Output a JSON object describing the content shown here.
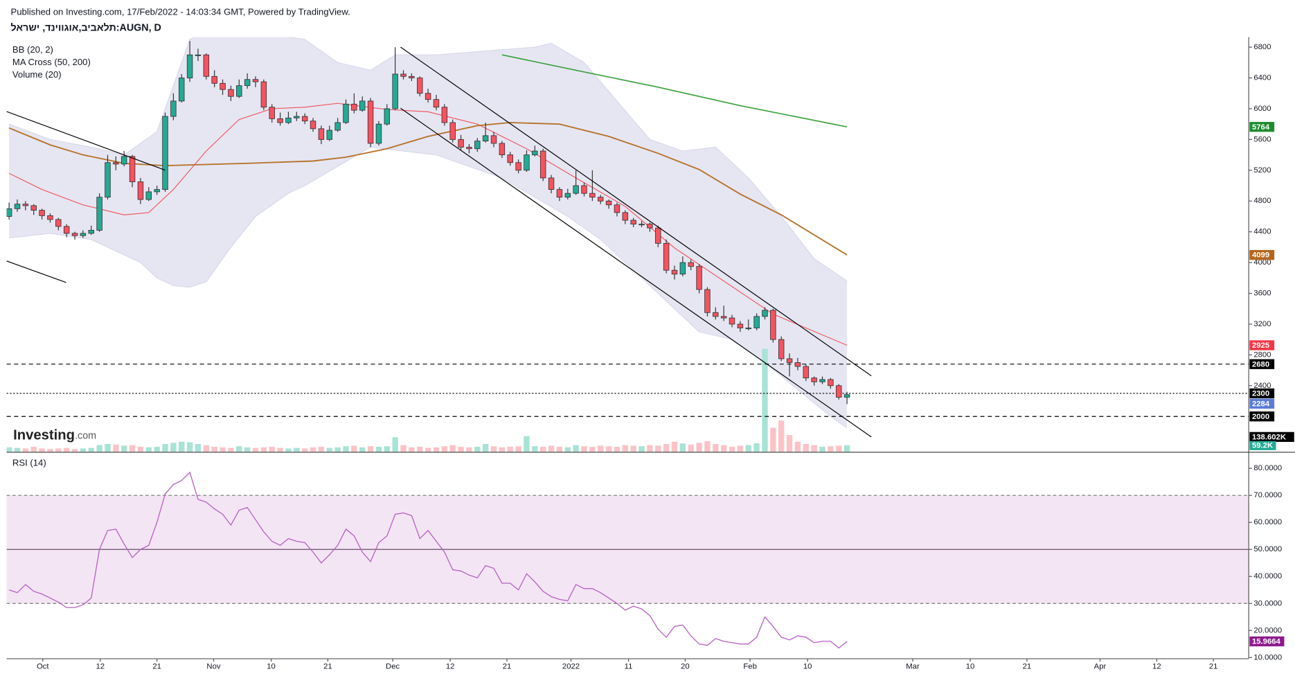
{
  "chart_data": {
    "type": "candlestick",
    "header": "Published on Investing.com, 17/Feb/2022 - 14:03:34 GMT, Powered by TradingView.",
    "title": "תלאביב,אוגווינד, ישראל:AUGN, D",
    "indicator_labels": [
      "BB (20, 2)",
      "MA Cross (50, 200)",
      "Volume (20)"
    ],
    "logo": [
      "Investing",
      ".com"
    ],
    "xlim": [
      -0.3,
      150.9
    ],
    "xticks": [
      {
        "value": 4.1,
        "label": "Oct"
      },
      {
        "value": 11.1,
        "label": "12"
      },
      {
        "value": 18,
        "label": "21"
      },
      {
        "value": 24.9,
        "label": "Nov"
      },
      {
        "value": 31.9,
        "label": "10"
      },
      {
        "value": 38.8,
        "label": "21"
      },
      {
        "value": 46.7,
        "label": "Dec"
      },
      {
        "value": 53.7,
        "label": "12"
      },
      {
        "value": 60.6,
        "label": "21"
      },
      {
        "value": 68.4,
        "label": "2022"
      },
      {
        "value": 75.4,
        "label": "11"
      },
      {
        "value": 82.3,
        "label": "20"
      },
      {
        "value": 90.2,
        "label": "Feb"
      },
      {
        "value": 97.2,
        "label": "10"
      },
      {
        "value": 110,
        "label": "Mar"
      },
      {
        "value": 117,
        "label": "10"
      },
      {
        "value": 123.9,
        "label": "21"
      },
      {
        "value": 132.8,
        "label": "Apr"
      },
      {
        "value": 139.7,
        "label": "12"
      },
      {
        "value": 146.6,
        "label": "21"
      }
    ],
    "ylim": [
      1540,
      6930
    ],
    "yticks": [
      2400,
      2800,
      3200,
      3600,
      4000,
      4400,
      4800,
      5200,
      5600,
      6000,
      6400,
      6800
    ],
    "up_color": "#22ab94",
    "down_color": "#f7525f",
    "ohlc": [
      [
        4600,
        4780,
        4560,
        4700
      ],
      [
        4700,
        4820,
        4660,
        4760
      ],
      [
        4760,
        4800,
        4680,
        4740
      ],
      [
        4740,
        4760,
        4620,
        4680
      ],
      [
        4680,
        4700,
        4560,
        4610
      ],
      [
        4610,
        4640,
        4520,
        4560
      ],
      [
        4560,
        4580,
        4420,
        4470
      ],
      [
        4470,
        4500,
        4330,
        4380
      ],
      [
        4380,
        4400,
        4300,
        4350
      ],
      [
        4350,
        4420,
        4320,
        4380
      ],
      [
        4380,
        4480,
        4360,
        4420
      ],
      [
        4420,
        4900,
        4400,
        4850
      ],
      [
        4850,
        5400,
        4820,
        5300
      ],
      [
        5300,
        5380,
        5200,
        5280
      ],
      [
        5280,
        5450,
        5250,
        5380
      ],
      [
        5380,
        5400,
        4980,
        5050
      ],
      [
        5050,
        5100,
        4760,
        4820
      ],
      [
        4820,
        4980,
        4800,
        4920
      ],
      [
        4920,
        5000,
        4880,
        4950
      ],
      [
        4950,
        5950,
        4920,
        5900
      ],
      [
        5900,
        6200,
        5850,
        6100
      ],
      [
        6100,
        6450,
        6080,
        6400
      ],
      [
        6400,
        6880,
        6350,
        6700
      ],
      [
        6700,
        6780,
        6620,
        6700
      ],
      [
        6700,
        6720,
        6380,
        6420
      ],
      [
        6420,
        6500,
        6280,
        6330
      ],
      [
        6330,
        6380,
        6180,
        6250
      ],
      [
        6250,
        6300,
        6100,
        6160
      ],
      [
        6160,
        6380,
        6140,
        6300
      ],
      [
        6300,
        6460,
        6260,
        6380
      ],
      [
        6380,
        6420,
        6280,
        6350
      ],
      [
        6350,
        6380,
        5980,
        6020
      ],
      [
        6020,
        6060,
        5820,
        5870
      ],
      [
        5870,
        5950,
        5780,
        5820
      ],
      [
        5820,
        5960,
        5800,
        5880
      ],
      [
        5880,
        5960,
        5840,
        5900
      ],
      [
        5900,
        5940,
        5800,
        5840
      ],
      [
        5840,
        5880,
        5700,
        5740
      ],
      [
        5740,
        5780,
        5540,
        5600
      ],
      [
        5600,
        5780,
        5580,
        5720
      ],
      [
        5720,
        5880,
        5700,
        5820
      ],
      [
        5820,
        6120,
        5800,
        6060
      ],
      [
        6060,
        6200,
        5940,
        5980
      ],
      [
        5980,
        6160,
        5960,
        6100
      ],
      [
        6100,
        6140,
        5500,
        5550
      ],
      [
        5550,
        5840,
        5520,
        5800
      ],
      [
        5800,
        6060,
        5780,
        6000
      ],
      [
        6000,
        6800,
        5980,
        6450
      ],
      [
        6450,
        6500,
        6380,
        6420
      ],
      [
        6420,
        6460,
        6360,
        6400
      ],
      [
        6400,
        6420,
        6160,
        6200
      ],
      [
        6200,
        6260,
        6080,
        6120
      ],
      [
        6120,
        6180,
        5980,
        6020
      ],
      [
        6020,
        6060,
        5780,
        5820
      ],
      [
        5820,
        5860,
        5560,
        5600
      ],
      [
        5600,
        5660,
        5460,
        5500
      ],
      [
        5500,
        5540,
        5420,
        5480
      ],
      [
        5480,
        5620,
        5440,
        5580
      ],
      [
        5580,
        5820,
        5560,
        5650
      ],
      [
        5650,
        5700,
        5500,
        5550
      ],
      [
        5550,
        5580,
        5360,
        5400
      ],
      [
        5400,
        5440,
        5260,
        5300
      ],
      [
        5300,
        5340,
        5160,
        5200
      ],
      [
        5200,
        5460,
        5180,
        5400
      ],
      [
        5400,
        5520,
        5380,
        5450
      ],
      [
        5450,
        5480,
        5060,
        5100
      ],
      [
        5100,
        5140,
        4900,
        4950
      ],
      [
        4950,
        4980,
        4800,
        4850
      ],
      [
        4850,
        4960,
        4820,
        4900
      ],
      [
        4900,
        5200,
        4880,
        5000
      ],
      [
        5000,
        5040,
        4860,
        4900
      ],
      [
        4900,
        5200,
        4800,
        4850
      ],
      [
        4850,
        4880,
        4760,
        4800
      ],
      [
        4800,
        4820,
        4700,
        4750
      ],
      [
        4750,
        4780,
        4600,
        4650
      ],
      [
        4650,
        4680,
        4500,
        4550
      ],
      [
        4550,
        4580,
        4460,
        4500
      ],
      [
        4500,
        4540,
        4460,
        4500
      ],
      [
        4500,
        4520,
        4400,
        4450
      ],
      [
        4450,
        4480,
        4200,
        4250
      ],
      [
        4250,
        4300,
        3860,
        3900
      ],
      [
        3900,
        3960,
        3780,
        3850
      ],
      [
        3850,
        4080,
        3820,
        4000
      ],
      [
        4000,
        4040,
        3900,
        3950
      ],
      [
        3950,
        3980,
        3600,
        3650
      ],
      [
        3650,
        3680,
        3300,
        3350
      ],
      [
        3350,
        3420,
        3260,
        3300
      ],
      [
        3300,
        3440,
        3240,
        3280
      ],
      [
        3280,
        3320,
        3160,
        3200
      ],
      [
        3200,
        3240,
        3100,
        3150
      ],
      [
        3150,
        3260,
        3120,
        3150
      ],
      [
        3150,
        3340,
        3120,
        3300
      ],
      [
        3300,
        3420,
        3260,
        3380
      ],
      [
        3380,
        3400,
        2960,
        3000
      ],
      [
        3000,
        3040,
        2720,
        2750
      ],
      [
        2750,
        2820,
        2520,
        2700
      ],
      [
        2700,
        2760,
        2600,
        2650
      ],
      [
        2650,
        2680,
        2460,
        2500
      ],
      [
        2500,
        2520,
        2400,
        2450
      ],
      [
        2450,
        2520,
        2420,
        2480
      ],
      [
        2480,
        2500,
        2360,
        2400
      ],
      [
        2400,
        2420,
        2220,
        2250
      ],
      [
        2250,
        2320,
        2160,
        2284
      ]
    ],
    "close_label_color": "#5b7bd5",
    "bb_fill": "#e6e6f3",
    "bb_upper": {
      "color": "#d8d8ec",
      "x": [
        0,
        5,
        10,
        14,
        18,
        20,
        22,
        24,
        30,
        36,
        40,
        44,
        47,
        52,
        58,
        64,
        66,
        70,
        74,
        78,
        82,
        86,
        90,
        94,
        98,
        102
      ],
      "values": [
        5800,
        5600,
        5500,
        5400,
        5700,
        6300,
        6900,
        7000,
        7000,
        6900,
        6600,
        6500,
        6700,
        6700,
        6750,
        6800,
        6850,
        6600,
        6100,
        5600,
        5450,
        5500,
        5100,
        4600,
        4050,
        3760
      ]
    },
    "bb_lower": {
      "color": "#d8d8ec",
      "x": [
        0,
        5,
        10,
        13,
        16,
        18,
        20,
        22,
        24,
        27,
        30,
        34,
        36,
        40,
        44,
        48,
        52,
        56,
        60,
        64,
        68,
        72,
        76,
        80,
        84,
        88,
        92,
        96,
        100,
        102
      ],
      "values": [
        4320,
        4380,
        4300,
        4150,
        4000,
        3800,
        3700,
        3680,
        3750,
        4200,
        4600,
        4900,
        5000,
        5250,
        5500,
        5450,
        5400,
        5250,
        5100,
        4850,
        4600,
        4300,
        3900,
        3500,
        3100,
        3000,
        2700,
        2350,
        2000,
        1850
      ]
    },
    "sma20": {
      "color": "#f05a5f",
      "x": [
        0,
        4,
        9,
        14,
        17,
        20,
        24,
        28,
        32,
        36,
        40,
        46,
        51,
        57,
        63,
        69,
        75,
        81,
        87,
        93,
        102
      ],
      "values": [
        5160,
        4950,
        4750,
        4620,
        4650,
        4950,
        5450,
        5860,
        6000,
        6020,
        6070,
        5990,
        5960,
        5800,
        5480,
        5100,
        4730,
        4190,
        3760,
        3330,
        2925
      ]
    },
    "ma50": {
      "color": "#b8742e",
      "x": [
        0,
        5,
        9,
        14,
        19,
        29,
        37,
        41,
        46,
        51,
        57,
        61,
        67,
        73,
        79,
        84,
        89,
        94,
        102
      ],
      "values": [
        5750,
        5530,
        5400,
        5290,
        5260,
        5290,
        5320,
        5370,
        5480,
        5640,
        5780,
        5820,
        5800,
        5640,
        5420,
        5210,
        4890,
        4620,
        4099
      ]
    },
    "ma200": {
      "color": "#3ca13c",
      "x": [
        60,
        69,
        79,
        89,
        102
      ],
      "values": [
        6700,
        6500,
        6280,
        6040,
        5764
      ]
    },
    "levels": [
      {
        "value": 2680,
        "dash": "5 4"
      },
      {
        "value": 2300,
        "dash": "2 2"
      },
      {
        "value": 2000,
        "dash": "5 4"
      }
    ],
    "level_color": "#000000",
    "volume": {
      "ylim": [
        0,
        3700000
      ],
      "up_color": "#a8e3d6",
      "down_color": "#fbc3c7",
      "values": [
        40000,
        35000,
        30000,
        45000,
        30000,
        25000,
        30000,
        35000,
        25000,
        30000,
        35000,
        60000,
        70000,
        65000,
        55000,
        60000,
        45000,
        40000,
        45000,
        70000,
        80000,
        90000,
        85000,
        70000,
        60000,
        45000,
        40000,
        35000,
        50000,
        40000,
        35000,
        40000,
        45000,
        35000,
        30000,
        35000,
        30000,
        40000,
        45000,
        35000,
        40000,
        50000,
        55000,
        40000,
        50000,
        45000,
        50000,
        130000,
        60000,
        40000,
        45000,
        35000,
        40000,
        50000,
        60000,
        45000,
        40000,
        45000,
        70000,
        50000,
        40000,
        45000,
        50000,
        140000,
        50000,
        45000,
        55000,
        45000,
        40000,
        60000,
        50000,
        45000,
        55000,
        50000,
        45000,
        60000,
        55000,
        50000,
        60000,
        55000,
        70000,
        90000,
        75000,
        65000,
        80000,
        95000,
        70000,
        60000,
        45000,
        55000,
        60000,
        75000,
        920000,
        215000,
        280000,
        150000,
        90000,
        70000,
        60000,
        45000,
        50000,
        55000,
        59200
      ],
      "last_label": "59.2K",
      "ma_label": "138.602K"
    },
    "rsi": {
      "title": "RSI (14)",
      "color": "#b660c4",
      "label_color": "#8d1a8d",
      "band_color": "#f3e5f3",
      "ylim": [
        9.7,
        85.8
      ],
      "yticks": [
        {
          "value": 10,
          "label": "10.0000"
        },
        {
          "value": 20,
          "label": "20.0000"
        },
        {
          "value": 30,
          "label": "30.0000"
        },
        {
          "value": 40,
          "label": "40.0000"
        },
        {
          "value": 50,
          "label": "50.0000"
        },
        {
          "value": 60,
          "label": "60.0000"
        },
        {
          "value": 70,
          "label": "70.0000"
        },
        {
          "value": 80,
          "label": "80.0000"
        }
      ],
      "band": [
        30,
        70
      ],
      "midline": 50,
      "values": [
        35,
        34,
        37,
        34.5,
        33.5,
        32,
        30.5,
        28.5,
        28.5,
        29.5,
        32,
        50,
        57,
        57.5,
        52,
        47,
        50,
        51.5,
        60,
        70.5,
        74,
        75.5,
        78.5,
        68.5,
        67.5,
        65,
        63,
        59,
        64.5,
        65.5,
        61,
        56.5,
        53,
        51.5,
        54,
        53,
        52.5,
        49,
        45,
        48,
        51.5,
        57.5,
        55,
        49,
        45.5,
        52.5,
        55,
        63,
        63.5,
        62.5,
        54,
        57,
        53,
        49,
        42.5,
        42,
        40.5,
        39.5,
        44,
        43,
        37.5,
        37.5,
        35,
        41,
        38,
        34.5,
        32.5,
        31.5,
        31,
        37,
        35.5,
        35.5,
        34,
        32,
        30,
        27.5,
        29,
        28,
        25.5,
        20.5,
        17.5,
        21.5,
        22,
        18,
        15,
        14.5,
        17,
        16,
        15.5,
        15,
        15,
        17.5,
        25,
        21.5,
        17.5,
        16.5,
        18,
        17.5,
        15.5,
        16,
        16,
        13.5,
        15.9664
      ]
    }
  }
}
